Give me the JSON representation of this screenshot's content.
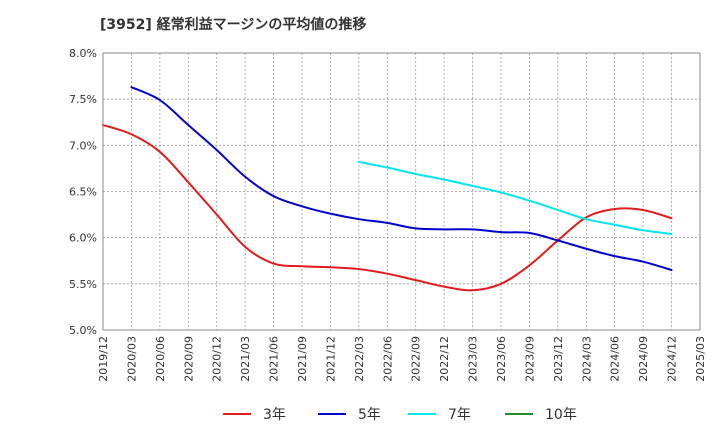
{
  "chart_data": {
    "type": "line",
    "title": "[3952]  経常利益マージンの平均値の推移",
    "xlabel": "",
    "ylabel": "",
    "ylim": [
      5.0,
      8.0
    ],
    "y_ticks": [
      "5.0%",
      "5.5%",
      "6.0%",
      "6.5%",
      "7.0%",
      "7.5%",
      "8.0%"
    ],
    "y_tick_values": [
      5.0,
      5.5,
      6.0,
      6.5,
      7.0,
      7.5,
      8.0
    ],
    "x_ticks": [
      "2019/12",
      "2020/03",
      "2020/06",
      "2020/09",
      "2020/12",
      "2021/03",
      "2021/06",
      "2021/09",
      "2021/12",
      "2022/03",
      "2022/06",
      "2022/09",
      "2022/12",
      "2023/03",
      "2023/06",
      "2023/09",
      "2023/12",
      "2024/03",
      "2024/06",
      "2024/09",
      "2024/12",
      "2025/03"
    ],
    "grid": true,
    "legend_position": "bottom",
    "series": [
      {
        "name": "3年",
        "color": "#e31a1c",
        "x": [
          "2019/12",
          "2020/03",
          "2020/06",
          "2020/09",
          "2020/12",
          "2021/03",
          "2021/06",
          "2021/09",
          "2021/12",
          "2022/03",
          "2022/06",
          "2022/09",
          "2022/12",
          "2023/03",
          "2023/06",
          "2023/09",
          "2023/12",
          "2024/03",
          "2024/06",
          "2024/09",
          "2024/12"
        ],
        "values": [
          7.22,
          7.12,
          6.93,
          6.6,
          6.25,
          5.9,
          5.72,
          5.69,
          5.68,
          5.66,
          5.61,
          5.54,
          5.47,
          5.43,
          5.5,
          5.7,
          5.97,
          6.22,
          6.31,
          6.3,
          6.21
        ]
      },
      {
        "name": "5年",
        "color": "#0000cc",
        "x": [
          "2020/03",
          "2020/06",
          "2020/09",
          "2020/12",
          "2021/03",
          "2021/06",
          "2021/09",
          "2021/12",
          "2022/03",
          "2022/06",
          "2022/09",
          "2022/12",
          "2023/03",
          "2023/06",
          "2023/09",
          "2023/12",
          "2024/03",
          "2024/06",
          "2024/09",
          "2024/12"
        ],
        "values": [
          7.63,
          7.49,
          7.22,
          6.95,
          6.66,
          6.45,
          6.34,
          6.26,
          6.2,
          6.16,
          6.1,
          6.09,
          6.09,
          6.06,
          6.05,
          5.97,
          5.88,
          5.8,
          5.74,
          5.65
        ]
      },
      {
        "name": "7年",
        "color": "#00e5ee",
        "x": [
          "2022/03",
          "2022/06",
          "2022/09",
          "2022/12",
          "2023/03",
          "2023/06",
          "2023/09",
          "2023/12",
          "2024/03",
          "2024/06",
          "2024/09",
          "2024/12"
        ],
        "values": [
          6.82,
          6.76,
          6.69,
          6.63,
          6.56,
          6.49,
          6.4,
          6.3,
          6.2,
          6.14,
          6.08,
          6.04
        ]
      },
      {
        "name": "10年",
        "color": "#228b22",
        "x": [],
        "values": []
      }
    ]
  }
}
